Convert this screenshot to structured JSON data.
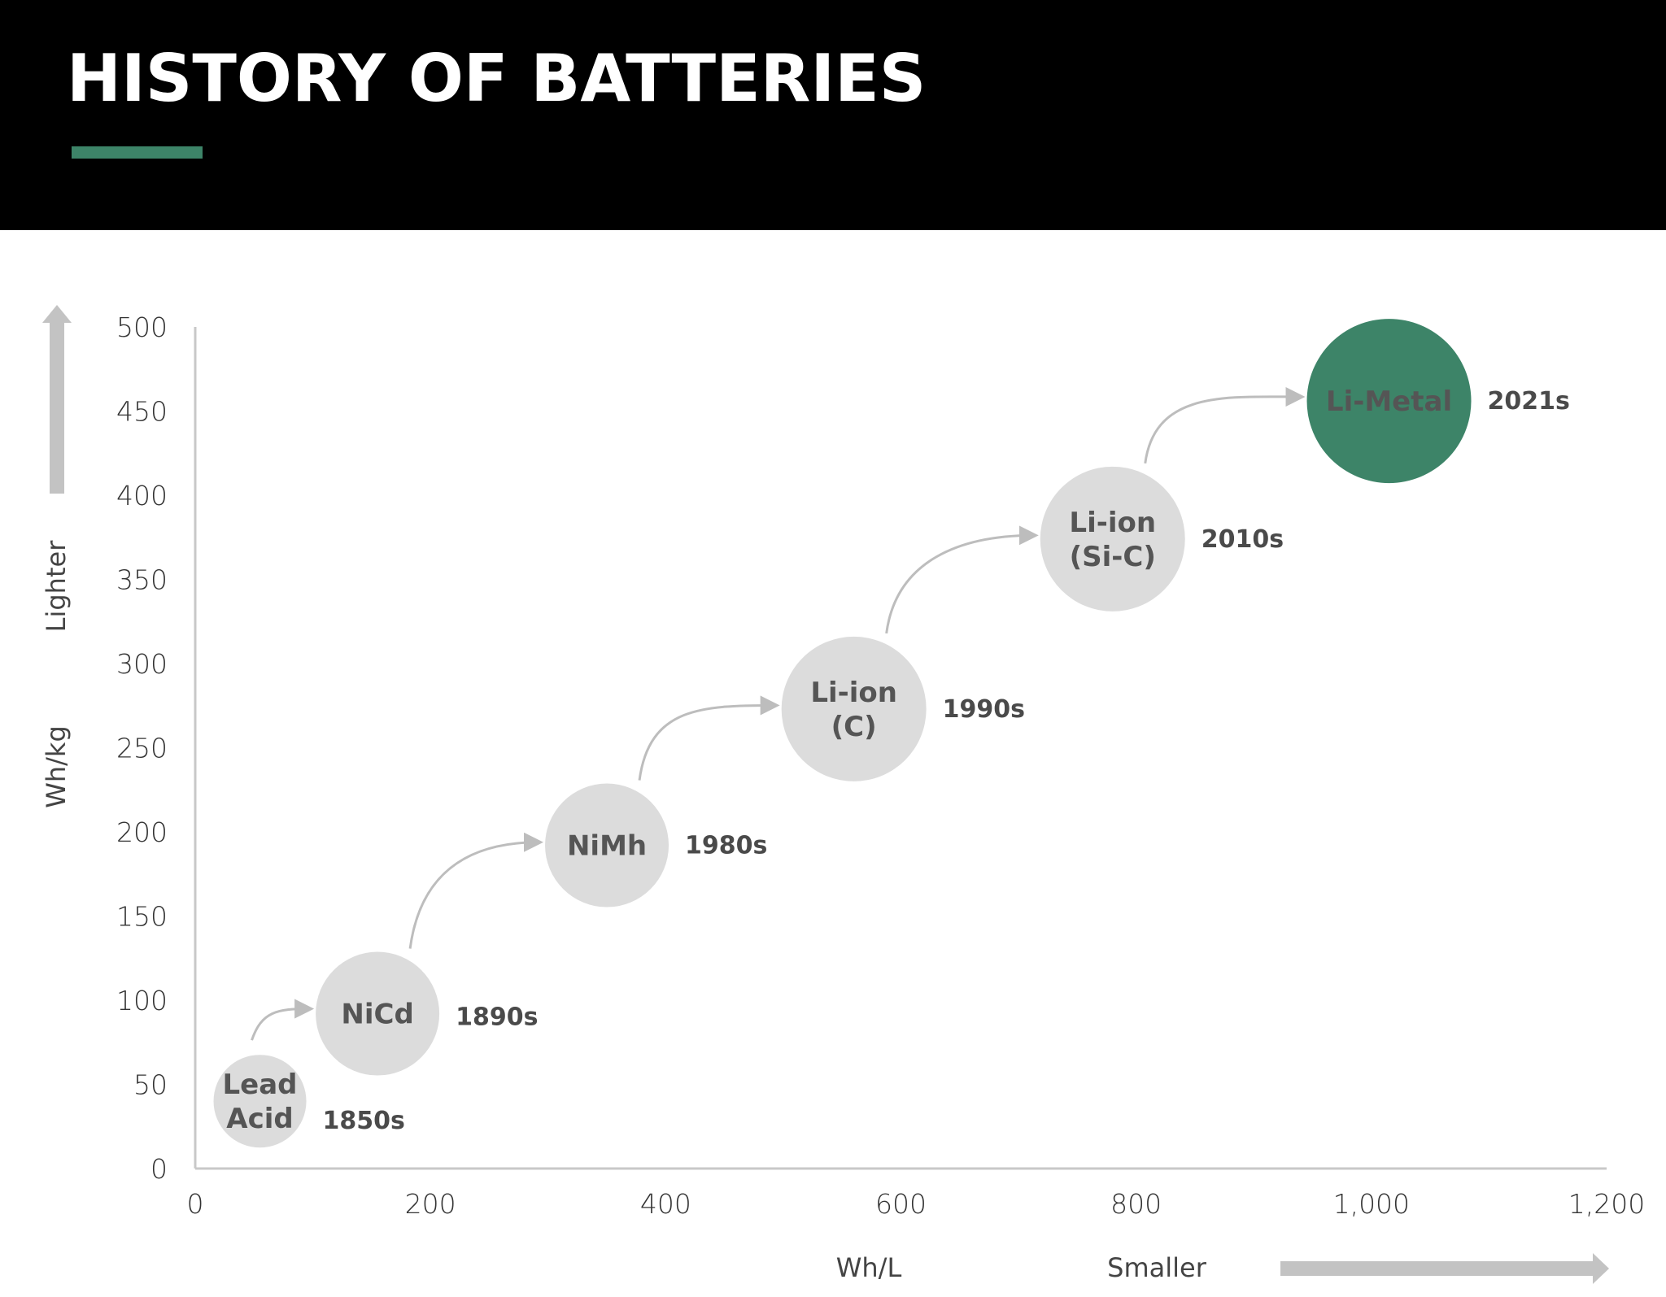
{
  "header": {
    "title": "HISTORY OF BATTERIES",
    "accent_color": "#3d8468",
    "background": "#000000"
  },
  "chart_data": {
    "type": "scatter",
    "title": "HISTORY OF BATTERIES",
    "xlabel": "Wh/L",
    "ylabel": "Wh/kg",
    "x_direction_label": "Smaller",
    "y_direction_label": "Lighter",
    "xlim": [
      0,
      1200
    ],
    "ylim": [
      0,
      500
    ],
    "x_ticks": [
      "0",
      "200",
      "400",
      "600",
      "800",
      "1,000",
      "1,200"
    ],
    "x_tick_values": [
      0,
      200,
      400,
      600,
      800,
      1000,
      1200
    ],
    "y_ticks": [
      "0",
      "50",
      "100",
      "150",
      "200",
      "250",
      "300",
      "350",
      "400",
      "450",
      "500"
    ],
    "y_tick_values": [
      0,
      50,
      100,
      150,
      200,
      250,
      300,
      350,
      400,
      450,
      500
    ],
    "grid": false,
    "legend": "none",
    "points": [
      {
        "label": [
          "Lead",
          "Acid"
        ],
        "year": "1850s",
        "x": 55,
        "y": 40,
        "color": "#dcdcdc"
      },
      {
        "label": [
          "NiCd"
        ],
        "year": "1890s",
        "x": 155,
        "y": 92,
        "color": "#dcdcdc"
      },
      {
        "label": [
          "NiMh"
        ],
        "year": "1980s",
        "x": 350,
        "y": 192,
        "color": "#dcdcdc"
      },
      {
        "label": [
          "Li-ion",
          "(C)"
        ],
        "year": "1990s",
        "x": 560,
        "y": 273,
        "color": "#dcdcdc"
      },
      {
        "label": [
          "Li-ion",
          "(Si-C)"
        ],
        "year": "2010s",
        "x": 780,
        "y": 374,
        "color": "#dcdcdc"
      },
      {
        "label": [
          "Li-Metal"
        ],
        "year": "2021s",
        "x": 1015,
        "y": 456,
        "color": "#3d8468"
      }
    ]
  }
}
